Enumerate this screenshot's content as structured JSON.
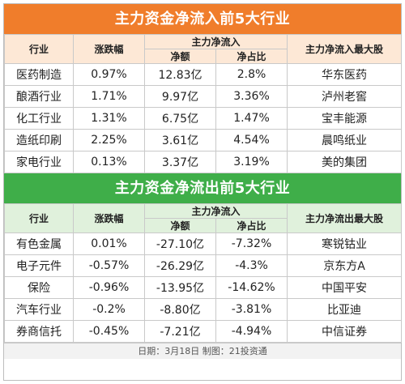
{
  "inflow": {
    "title": "主力资金净流入前5大行业",
    "headers": {
      "industry": "行业",
      "change": "涨跌幅",
      "net_flow": "主力净流入",
      "net_amount": "净额",
      "net_ratio": "净占比",
      "top_stock": "主力净流入最大股"
    },
    "rows": [
      {
        "industry": "医药制造",
        "change": "0.97%",
        "amount": "12.83亿",
        "ratio": "2.8%",
        "stock": "华东医药"
      },
      {
        "industry": "酿酒行业",
        "change": "1.71%",
        "amount": "9.97亿",
        "ratio": "3.36%",
        "stock": "泸州老窖"
      },
      {
        "industry": "化工行业",
        "change": "1.31%",
        "amount": "6.75亿",
        "ratio": "1.47%",
        "stock": "宝丰能源"
      },
      {
        "industry": "造纸印刷",
        "change": "2.25%",
        "amount": "3.61亿",
        "ratio": "4.54%",
        "stock": "晨鸣纸业"
      },
      {
        "industry": "家电行业",
        "change": "0.13%",
        "amount": "3.37亿",
        "ratio": "3.19%",
        "stock": "美的集团"
      }
    ]
  },
  "outflow": {
    "title": "主力资金净流出前5大行业",
    "headers": {
      "industry": "行业",
      "change": "涨跌幅",
      "net_flow": "主力净流入",
      "net_amount": "净额",
      "net_ratio": "净占比",
      "top_stock": "主力净流出最大股"
    },
    "rows": [
      {
        "industry": "有色金属",
        "change": "0.01%",
        "amount": "-27.10亿",
        "ratio": "-7.32%",
        "stock": "寒锐钴业"
      },
      {
        "industry": "电子元件",
        "change": "-0.57%",
        "amount": "-26.29亿",
        "ratio": "-4.3%",
        "stock": "京东方A"
      },
      {
        "industry": "保险",
        "change": "-0.96%",
        "amount": "-13.95亿",
        "ratio": "-14.62%",
        "stock": "中国平安"
      },
      {
        "industry": "汽车行业",
        "change": "-0.2%",
        "amount": "-8.80亿",
        "ratio": "-3.81%",
        "stock": "比亚迪"
      },
      {
        "industry": "券商信托",
        "change": "-0.45%",
        "amount": "-7.21亿",
        "ratio": "-4.94%",
        "stock": "中信证券"
      }
    ]
  },
  "footer": "日期：3月18日 制图：21投资通",
  "colors": {
    "inflow_banner": "#f07d2b",
    "outflow_banner": "#3fae49",
    "inflow_header_bg": "#fde8d6",
    "outflow_header_bg": "#e0f1dc"
  }
}
